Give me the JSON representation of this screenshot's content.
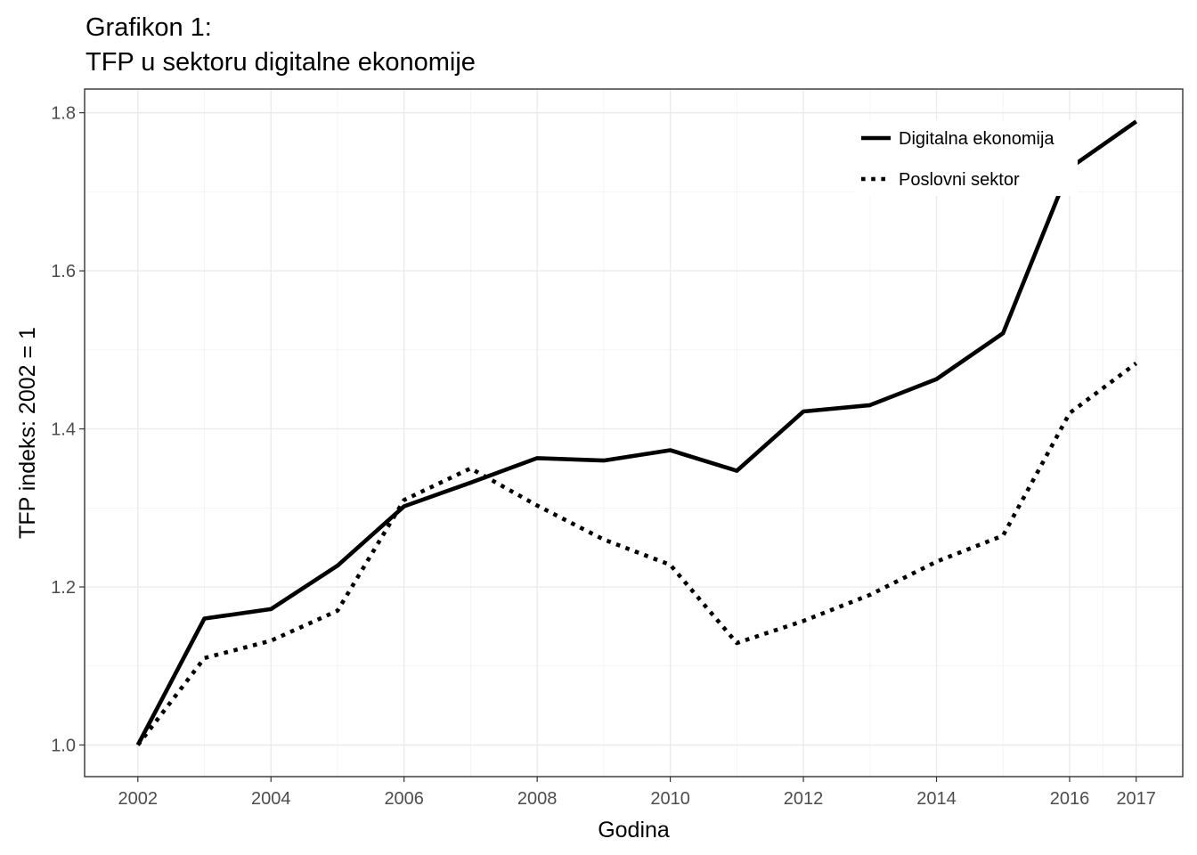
{
  "chart_data": {
    "type": "line",
    "title_line1": "Grafikon 1:",
    "title_line2": "TFP u sektoru digitalne ekonomije",
    "xlabel": "Godina",
    "ylabel": "TFP indeks: 2002 = 1",
    "x": [
      2002,
      2003,
      2004,
      2005,
      2006,
      2007,
      2008,
      2009,
      2010,
      2011,
      2012,
      2013,
      2014,
      2015,
      2016,
      2017
    ],
    "x_ticks": [
      2002,
      2004,
      2006,
      2008,
      2010,
      2012,
      2014,
      2016,
      2017
    ],
    "x_tick_labels": [
      "2002",
      "2004",
      "2006",
      "2008",
      "2010",
      "2012",
      "2014",
      "2016",
      "2017"
    ],
    "y_ticks": [
      1.0,
      1.2,
      1.4,
      1.6,
      1.8
    ],
    "y_tick_labels": [
      "1.0",
      "1.2",
      "1.4",
      "1.6",
      "1.8"
    ],
    "xlim": [
      2001.2,
      2017.7
    ],
    "ylim": [
      0.96,
      1.83
    ],
    "grid": true,
    "legend_position": "top-right",
    "series": [
      {
        "name": "Digitalna ekonomija",
        "style": "solid",
        "color": "#000000",
        "values": [
          1.0,
          1.16,
          1.172,
          1.227,
          1.302,
          1.332,
          1.363,
          1.36,
          1.373,
          1.347,
          1.422,
          1.43,
          1.463,
          1.521,
          1.73,
          1.789
        ]
      },
      {
        "name": "Poslovni sektor",
        "style": "dotted",
        "color": "#000000",
        "values": [
          1.0,
          1.11,
          1.132,
          1.17,
          1.31,
          1.35,
          1.303,
          1.26,
          1.228,
          1.129,
          1.157,
          1.19,
          1.232,
          1.265,
          1.42,
          1.483
        ]
      }
    ]
  }
}
